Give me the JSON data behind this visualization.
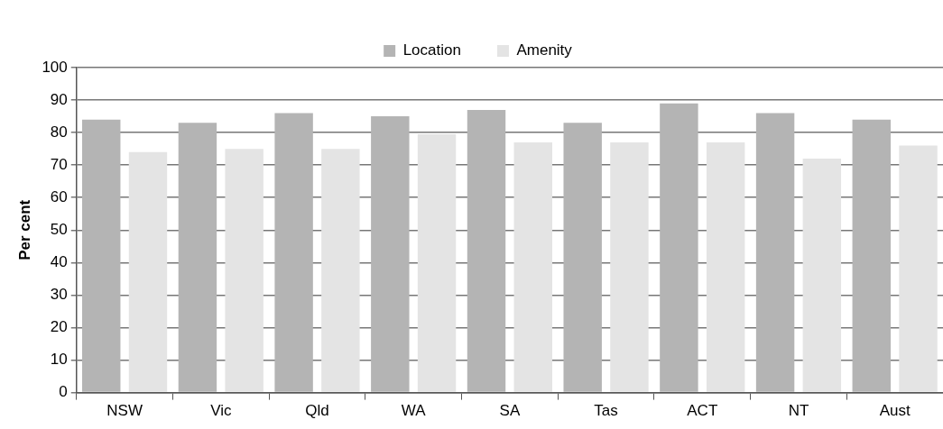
{
  "chart_data": {
    "type": "bar",
    "ylabel": "Per cent",
    "categories": [
      "NSW",
      "Vic",
      "Qld",
      "WA",
      "SA",
      "Tas",
      "ACT",
      "NT",
      "Aust"
    ],
    "series": [
      {
        "name": "Location",
        "color": "#b4b4b4",
        "values": [
          84,
          83,
          86,
          85,
          87,
          83,
          89,
          86,
          84
        ]
      },
      {
        "name": "Amenity",
        "color": "#e4e4e4",
        "values": [
          74,
          75,
          75,
          79.5,
          77,
          77,
          77,
          72,
          76
        ]
      }
    ],
    "ylim": [
      0,
      100
    ],
    "yticks": [
      0,
      10,
      20,
      30,
      40,
      50,
      60,
      70,
      80,
      90,
      100
    ],
    "grid": "y",
    "legend": "top"
  }
}
